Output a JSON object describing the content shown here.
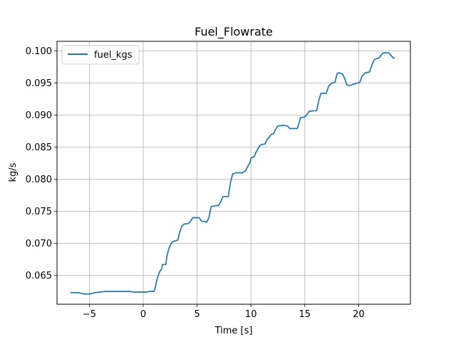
{
  "chart_data": {
    "type": "line",
    "title": "Fuel_Flowrate",
    "xlabel": "Time [s]",
    "ylabel": "kg/s",
    "xlim": [
      -8.0,
      24.8
    ],
    "ylim": [
      0.0605,
      0.1015
    ],
    "x_ticks": [
      -5,
      0,
      5,
      10,
      15,
      20
    ],
    "x_tick_labels": [
      "−5",
      "0",
      "5",
      "10",
      "15",
      "20"
    ],
    "y_ticks": [
      0.065,
      0.07,
      0.075,
      0.08,
      0.085,
      0.09,
      0.095,
      0.1
    ],
    "y_tick_labels": [
      "0.065",
      "0.070",
      "0.075",
      "0.080",
      "0.085",
      "0.090",
      "0.095",
      "0.100"
    ],
    "grid": true,
    "legend_position": "top-left",
    "series": [
      {
        "name": "fuel_kgs",
        "color": "#1f77b4",
        "points": [
          [
            -6.7,
            0.0623
          ],
          [
            -6.0,
            0.0623
          ],
          [
            -5.5,
            0.0621
          ],
          [
            -5.0,
            0.0621
          ],
          [
            -4.5,
            0.0623
          ],
          [
            -4.0,
            0.0624
          ],
          [
            -3.5,
            0.0625
          ],
          [
            -2.0,
            0.0625
          ],
          [
            -1.2,
            0.0625
          ],
          [
            -1.0,
            0.0624
          ],
          [
            0.0,
            0.0624
          ],
          [
            0.4,
            0.0624
          ],
          [
            0.5,
            0.0625
          ],
          [
            1.0,
            0.0625
          ],
          [
            1.1,
            0.063
          ],
          [
            1.3,
            0.0645
          ],
          [
            1.5,
            0.0655
          ],
          [
            1.7,
            0.066
          ],
          [
            1.8,
            0.0667
          ],
          [
            2.1,
            0.0667
          ],
          [
            2.2,
            0.068
          ],
          [
            2.4,
            0.0693
          ],
          [
            2.6,
            0.07
          ],
          [
            2.8,
            0.0703
          ],
          [
            3.2,
            0.0705
          ],
          [
            3.4,
            0.0718
          ],
          [
            3.6,
            0.0727
          ],
          [
            3.8,
            0.073
          ],
          [
            4.2,
            0.0731
          ],
          [
            4.4,
            0.0735
          ],
          [
            4.6,
            0.074
          ],
          [
            5.2,
            0.074
          ],
          [
            5.4,
            0.0735
          ],
          [
            5.6,
            0.0734
          ],
          [
            5.9,
            0.0733
          ],
          [
            6.1,
            0.074
          ],
          [
            6.3,
            0.0757
          ],
          [
            6.4,
            0.0758
          ],
          [
            7.0,
            0.0759
          ],
          [
            7.2,
            0.0765
          ],
          [
            7.4,
            0.0773
          ],
          [
            7.9,
            0.0773
          ],
          [
            8.1,
            0.0795
          ],
          [
            8.3,
            0.0808
          ],
          [
            8.6,
            0.081
          ],
          [
            9.2,
            0.081
          ],
          [
            9.5,
            0.0813
          ],
          [
            9.7,
            0.082
          ],
          [
            9.9,
            0.0825
          ],
          [
            10.0,
            0.0833
          ],
          [
            10.3,
            0.0835
          ],
          [
            10.5,
            0.0843
          ],
          [
            10.8,
            0.0852
          ],
          [
            11.0,
            0.0854
          ],
          [
            11.3,
            0.0855
          ],
          [
            11.5,
            0.0862
          ],
          [
            11.7,
            0.0866
          ],
          [
            11.9,
            0.087
          ],
          [
            12.1,
            0.0871
          ],
          [
            12.3,
            0.0878
          ],
          [
            12.5,
            0.0883
          ],
          [
            13.0,
            0.0884
          ],
          [
            13.4,
            0.0883
          ],
          [
            13.6,
            0.0879
          ],
          [
            14.3,
            0.0879
          ],
          [
            14.5,
            0.0889
          ],
          [
            14.6,
            0.0896
          ],
          [
            15.0,
            0.0897
          ],
          [
            15.2,
            0.0901
          ],
          [
            15.4,
            0.0906
          ],
          [
            16.1,
            0.0907
          ],
          [
            16.3,
            0.0923
          ],
          [
            16.5,
            0.0934
          ],
          [
            17.0,
            0.0934
          ],
          [
            17.2,
            0.0945
          ],
          [
            17.5,
            0.095
          ],
          [
            17.8,
            0.0951
          ],
          [
            18.0,
            0.0965
          ],
          [
            18.2,
            0.0966
          ],
          [
            18.5,
            0.0964
          ],
          [
            18.7,
            0.0957
          ],
          [
            18.9,
            0.0947
          ],
          [
            19.2,
            0.0946
          ],
          [
            19.5,
            0.0948
          ],
          [
            19.9,
            0.095
          ],
          [
            20.1,
            0.0951
          ],
          [
            20.3,
            0.096
          ],
          [
            20.6,
            0.0966
          ],
          [
            21.0,
            0.0967
          ],
          [
            21.2,
            0.0977
          ],
          [
            21.4,
            0.0985
          ],
          [
            21.6,
            0.0988
          ],
          [
            21.9,
            0.0989
          ],
          [
            22.1,
            0.0994
          ],
          [
            22.3,
            0.0997
          ],
          [
            22.8,
            0.0997
          ],
          [
            23.0,
            0.0993
          ],
          [
            23.2,
            0.0989
          ],
          [
            23.3,
            0.0989
          ]
        ]
      }
    ]
  }
}
